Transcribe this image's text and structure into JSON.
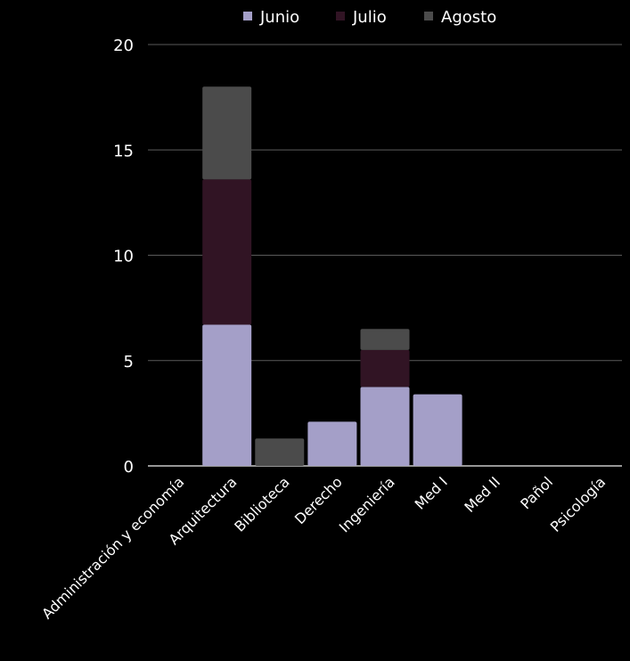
{
  "chart_data": {
    "type": "bar",
    "stacked": true,
    "categories": [
      "Administración y economía",
      "Arquitectura",
      "Biblioteca",
      "Derecho",
      "Ingeniería",
      "Med I",
      "Med II",
      "Pañol",
      "Psicología"
    ],
    "series": [
      {
        "name": "Junio",
        "color": "#a49fc8",
        "values": [
          0,
          6.7,
          0,
          2.1,
          3.75,
          3.4,
          0,
          0,
          0
        ]
      },
      {
        "name": "Julio",
        "color": "#311424",
        "values": [
          0,
          6.9,
          0,
          0,
          1.75,
          0,
          0,
          0,
          0
        ]
      },
      {
        "name": "Agosto",
        "color": "#4b4b4b",
        "values": [
          0,
          4.4,
          1.3,
          0,
          1.0,
          0,
          0,
          0,
          0
        ]
      }
    ],
    "ylim": [
      0,
      20
    ],
    "yticks": [
      "0",
      "5",
      "10",
      "15",
      "20"
    ],
    "grid": true,
    "legend_position": "top",
    "title": "",
    "xlabel": "",
    "ylabel": ""
  }
}
